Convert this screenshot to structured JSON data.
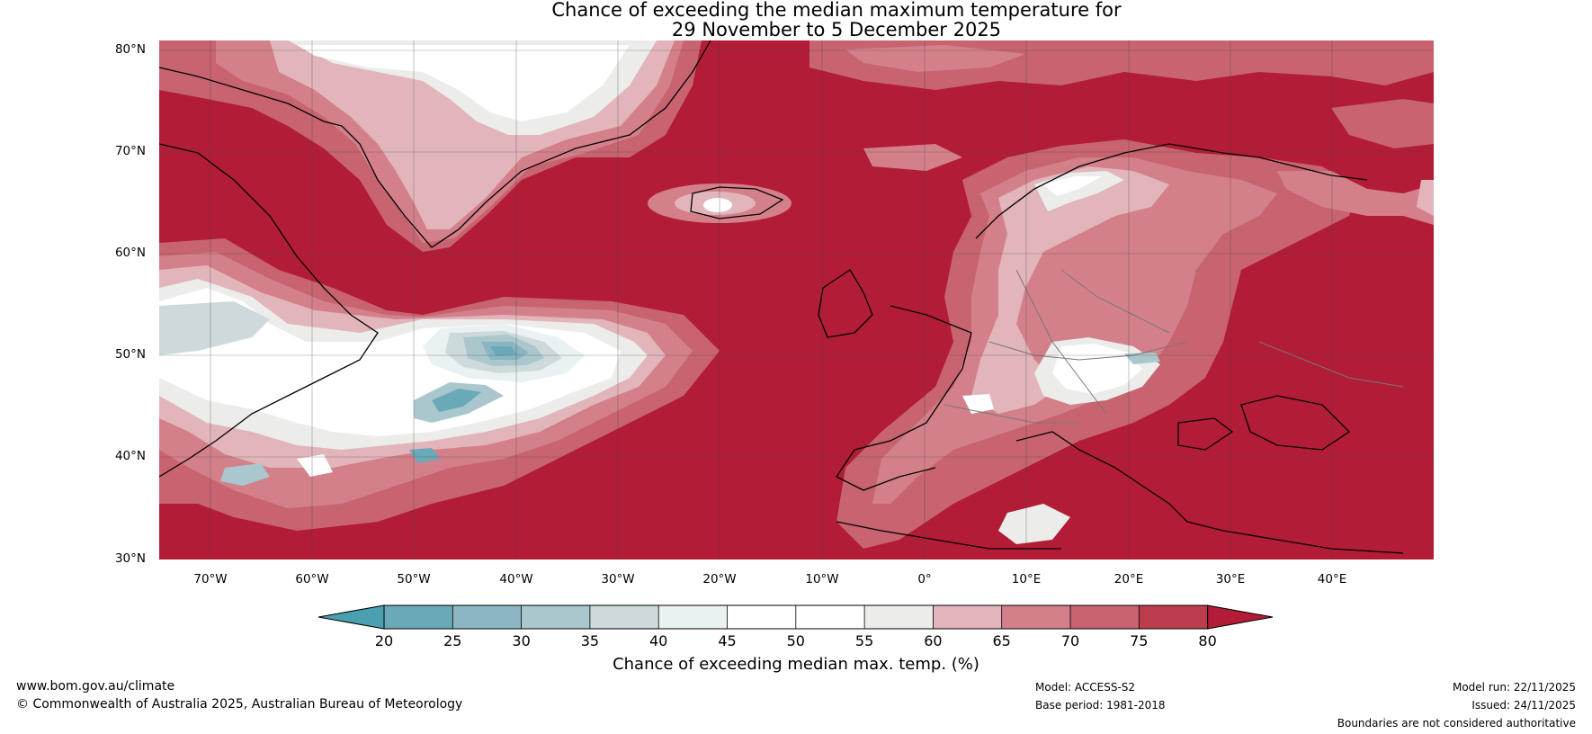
{
  "title": {
    "line1": "Chance of exceeding the median maximum temperature for",
    "line2": "29 November to 5 December 2025"
  },
  "map": {
    "lat_labels": [
      "80°N",
      "70°N",
      "60°N",
      "50°N",
      "40°N",
      "30°N"
    ],
    "lon_labels": [
      "70°W",
      "60°W",
      "50°W",
      "40°W",
      "30°W",
      "20°W",
      "10°W",
      "0°",
      "10°E",
      "20°E",
      "30°E",
      "40°E"
    ],
    "lat_range": [
      30,
      81
    ],
    "lon_range": [
      -75,
      50
    ]
  },
  "colorbar": {
    "ticks": [
      "20",
      "25",
      "30",
      "35",
      "40",
      "45",
      "50",
      "55",
      "60",
      "65",
      "70",
      "75",
      "80"
    ],
    "colors": [
      "#4a9fb0",
      "#6aa9b8",
      "#8ab5c2",
      "#a9c7cc",
      "#cdd9db",
      "#eaf1f2",
      "#ffffff",
      "#ffffff",
      "#ececeb",
      "#e2b5bb",
      "#d4808b",
      "#c7646f",
      "#bc3c4c",
      "#b21c37"
    ],
    "label": "Chance of exceeding median max. temp. (%)"
  },
  "footer": {
    "website": "www.bom.gov.au/climate",
    "copyright": "© Commonwealth of Australia 2025, Australian Bureau of Meteorology",
    "model": "Model: ACCESS-S2",
    "base_period": "Base period: 1981-2018",
    "model_run": "Model run: 22/11/2025",
    "issued": "Issued: 24/11/2025",
    "disclaimer": "Boundaries are not considered authoritative"
  }
}
